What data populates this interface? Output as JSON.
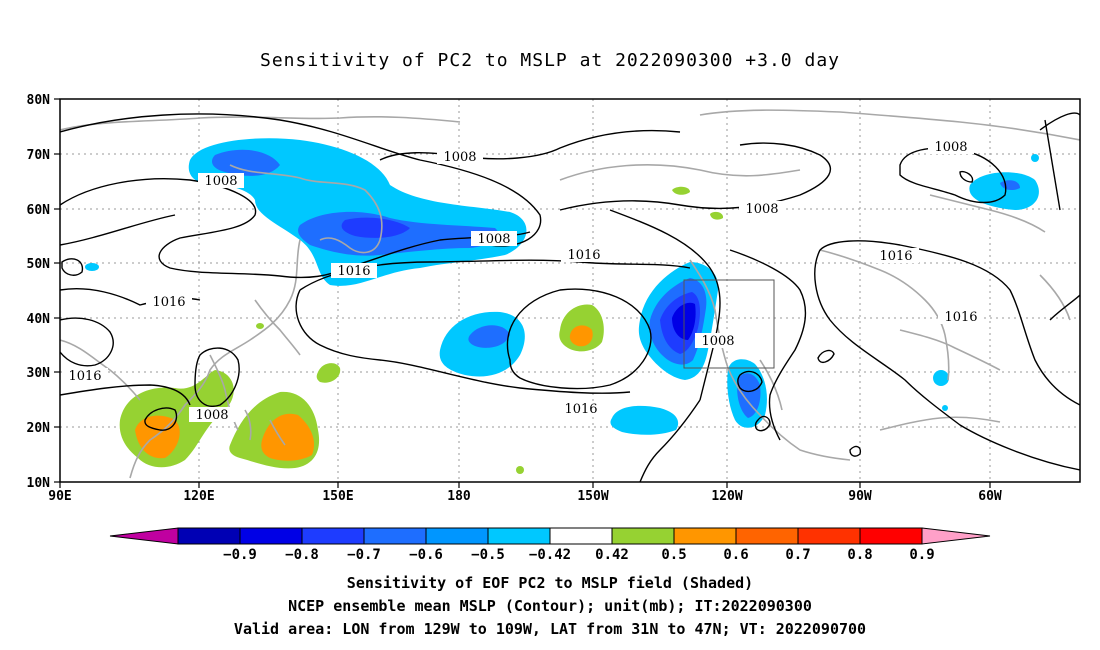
{
  "title": "Sensitivity of PC2 to MSLP at 2022090300 +3.0 day",
  "map": {
    "lat_labels": [
      "80N",
      "70N",
      "60N",
      "50N",
      "40N",
      "30N",
      "20N",
      "10N"
    ],
    "lon_labels": [
      "90E",
      "120E",
      "150E",
      "180",
      "150W",
      "120W",
      "90W",
      "60W"
    ],
    "lat_range": [
      10,
      80
    ],
    "lon_range": [
      90,
      310
    ],
    "gridlines": "dotted",
    "contour_labels": [
      "1008",
      "1008",
      "1008",
      "1008",
      "1008",
      "1008",
      "1008",
      "1016",
      "1016",
      "1016",
      "1016",
      "1016",
      "1016"
    ],
    "valid_area_box": {
      "lon": [
        "129W",
        "109W"
      ],
      "lat": [
        "31N",
        "47N"
      ]
    }
  },
  "colorbar": {
    "labels": [
      "-0.9",
      "-0.8",
      "-0.7",
      "-0.6",
      "-0.5",
      "-0.42",
      "0.42",
      "0.5",
      "0.6",
      "0.7",
      "0.8",
      "0.9"
    ],
    "colors": [
      "#c000a0",
      "#0000b4",
      "#0000e6",
      "#1e3cff",
      "#1e6eff",
      "#0096ff",
      "#00c8ff",
      "#ffffff",
      "#96d232",
      "#ff9600",
      "#ff6400",
      "#ff3200",
      "#ff0000",
      "#ffa0c8"
    ]
  },
  "captions": {
    "line1": "Sensitivity of EOF PC2 to MSLP field (Shaded)",
    "line2": "NCEP ensemble mean MSLP (Contour); unit(mb); IT:2022090300",
    "line3": "Valid area: LON from 129W to 109W, LAT from 31N to 47N; VT: 2022090700"
  }
}
